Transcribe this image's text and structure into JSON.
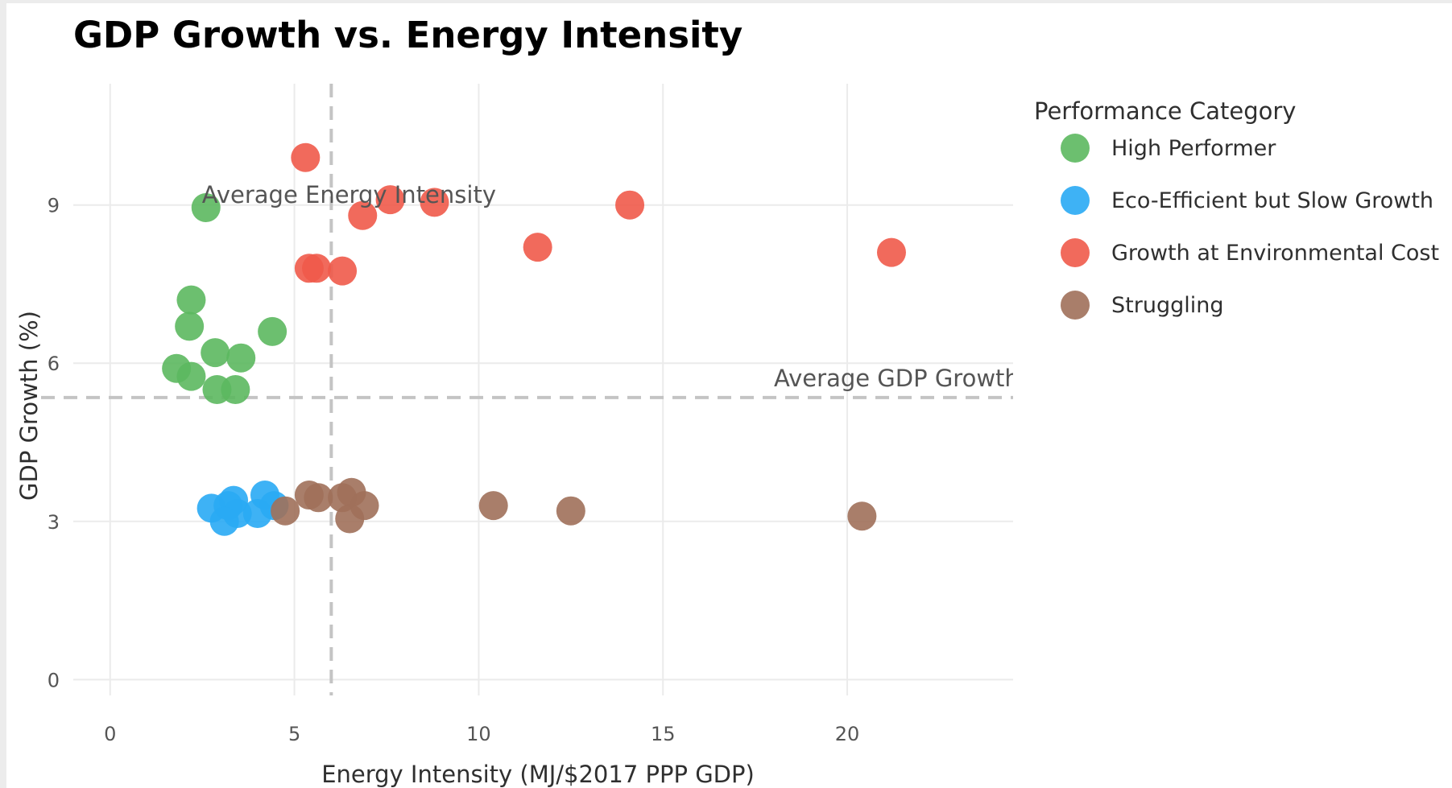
{
  "chart_data": {
    "type": "scatter",
    "title": "GDP Growth vs. Energy Intensity",
    "xlabel": "Energy Intensity (MJ/$2017 PPP GDP)",
    "ylabel": "GDP Growth (%)",
    "xlim": [
      -1.0,
      24.5
    ],
    "ylim": [
      -0.3,
      11.3
    ],
    "xticks": [
      0,
      5,
      10,
      15,
      20
    ],
    "yticks": [
      0,
      3,
      6,
      9
    ],
    "grid": true,
    "legend": {
      "title": "Performance Category",
      "placement": "right"
    },
    "reference_lines": [
      {
        "orientation": "vertical",
        "value": 6.0,
        "label": "Average Energy Intensity"
      },
      {
        "orientation": "horizontal",
        "value": 5.35,
        "label": "Average GDP Growth"
      }
    ],
    "series": [
      {
        "name": "High Performer",
        "color": "#5cb85f",
        "points": [
          {
            "x": 2.6,
            "y": 8.95
          },
          {
            "x": 2.2,
            "y": 7.2
          },
          {
            "x": 2.15,
            "y": 6.7
          },
          {
            "x": 4.4,
            "y": 6.6
          },
          {
            "x": 2.85,
            "y": 6.2
          },
          {
            "x": 3.55,
            "y": 6.1
          },
          {
            "x": 1.8,
            "y": 5.9
          },
          {
            "x": 2.2,
            "y": 5.75
          },
          {
            "x": 2.9,
            "y": 5.5
          },
          {
            "x": 3.4,
            "y": 5.5
          }
        ]
      },
      {
        "name": "Eco-Efficient but Slow Growth",
        "color": "#29aaf4",
        "points": [
          {
            "x": 2.75,
            "y": 3.25
          },
          {
            "x": 3.35,
            "y": 3.4
          },
          {
            "x": 3.2,
            "y": 3.3
          },
          {
            "x": 3.45,
            "y": 3.15
          },
          {
            "x": 3.1,
            "y": 3.0
          },
          {
            "x": 4.2,
            "y": 3.5
          },
          {
            "x": 4.45,
            "y": 3.3
          },
          {
            "x": 4.0,
            "y": 3.15
          }
        ]
      },
      {
        "name": "Growth at Environmental Cost",
        "color": "#f05a4a",
        "points": [
          {
            "x": 5.3,
            "y": 9.9
          },
          {
            "x": 6.85,
            "y": 8.8
          },
          {
            "x": 7.6,
            "y": 9.1
          },
          {
            "x": 8.8,
            "y": 9.05
          },
          {
            "x": 14.1,
            "y": 9.0
          },
          {
            "x": 11.6,
            "y": 8.2
          },
          {
            "x": 21.2,
            "y": 8.1
          },
          {
            "x": 5.4,
            "y": 7.8
          },
          {
            "x": 5.6,
            "y": 7.8
          },
          {
            "x": 6.3,
            "y": 7.75
          }
        ]
      },
      {
        "name": "Struggling",
        "color": "#a0705a",
        "points": [
          {
            "x": 4.75,
            "y": 3.2
          },
          {
            "x": 5.4,
            "y": 3.5
          },
          {
            "x": 5.65,
            "y": 3.45
          },
          {
            "x": 6.3,
            "y": 3.45
          },
          {
            "x": 6.55,
            "y": 3.55
          },
          {
            "x": 6.9,
            "y": 3.3
          },
          {
            "x": 6.5,
            "y": 3.05
          },
          {
            "x": 10.4,
            "y": 3.3
          },
          {
            "x": 12.5,
            "y": 3.2
          },
          {
            "x": 20.4,
            "y": 3.1
          }
        ]
      }
    ]
  }
}
